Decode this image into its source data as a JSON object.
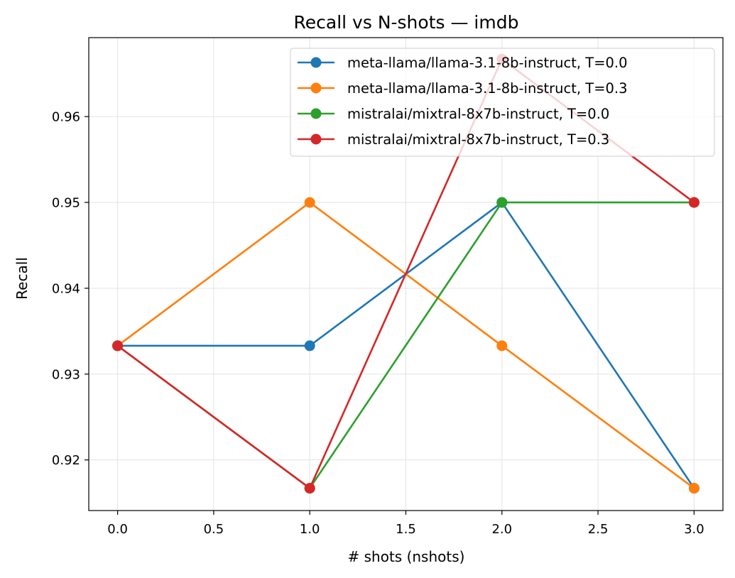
{
  "chart_data": {
    "type": "line",
    "title": "Recall vs N-shots — imdb",
    "xlabel": "# shots (nshots)",
    "ylabel": "Recall",
    "x": [
      0,
      1,
      2,
      3
    ],
    "xlim": [
      -0.15,
      3.15
    ],
    "ylim": [
      0.9141,
      0.9692
    ],
    "xticks": [
      0.0,
      0.5,
      1.0,
      1.5,
      2.0,
      2.5,
      3.0
    ],
    "xtick_labels": [
      "0.0",
      "0.5",
      "1.0",
      "1.5",
      "2.0",
      "2.5",
      "3.0"
    ],
    "yticks": [
      0.92,
      0.93,
      0.94,
      0.95,
      0.96
    ],
    "ytick_labels": [
      "0.92",
      "0.93",
      "0.94",
      "0.95",
      "0.96"
    ],
    "grid": true,
    "legend_position": "top-right",
    "series": [
      {
        "name": "meta-llama/llama-3.1-8b-instruct, T=0.0",
        "color": "#1f77b4",
        "values": [
          0.9333,
          0.9333,
          0.95,
          0.9167
        ]
      },
      {
        "name": "meta-llama/llama-3.1-8b-instruct, T=0.3",
        "color": "#ff7f0e",
        "values": [
          0.9333,
          0.95,
          0.9333,
          0.9167
        ]
      },
      {
        "name": "mistralai/mixtral-8x7b-instruct, T=0.0",
        "color": "#2ca02c",
        "values": [
          0.9333,
          0.9167,
          0.95,
          0.95
        ]
      },
      {
        "name": "mistralai/mixtral-8x7b-instruct, T=0.3",
        "color": "#d62728",
        "values": [
          0.9333,
          0.9167,
          0.9667,
          0.95
        ]
      }
    ]
  }
}
